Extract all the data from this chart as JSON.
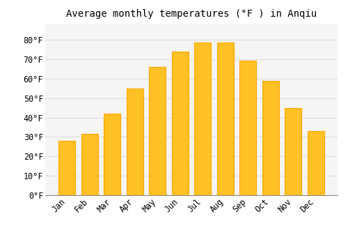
{
  "title": "Average monthly temperatures (°F ) in Anqiu",
  "months": [
    "Jan",
    "Feb",
    "Mar",
    "Apr",
    "May",
    "Jun",
    "Jul",
    "Aug",
    "Sep",
    "Oct",
    "Nov",
    "Dec"
  ],
  "values": [
    28,
    31.5,
    42,
    55,
    66,
    74,
    78.5,
    78.5,
    69.5,
    59,
    45,
    33
  ],
  "bar_color": "#FFC125",
  "bar_edge_color": "#FFA500",
  "background_color": "#FFFFFF",
  "plot_bg_color": "#F5F5F5",
  "grid_color": "#DDDDDD",
  "ylim": [
    0,
    88
  ],
  "yticks": [
    0,
    10,
    20,
    30,
    40,
    50,
    60,
    70,
    80
  ],
  "title_fontsize": 10,
  "tick_fontsize": 8.5
}
